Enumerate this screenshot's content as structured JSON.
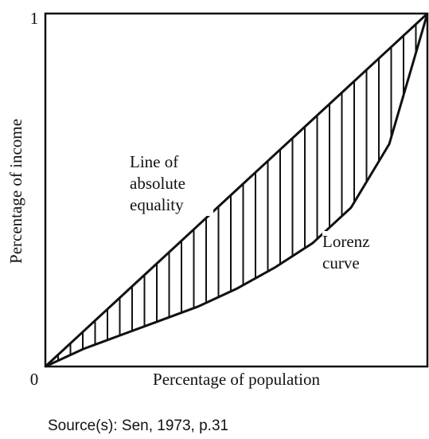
{
  "chart_data": {
    "type": "line",
    "x": [
      0,
      0.1,
      0.2,
      0.3,
      0.4,
      0.5,
      0.6,
      0.7,
      0.8,
      0.9,
      1
    ],
    "series": [
      {
        "name": "Line of absolute equality",
        "color": "#111111",
        "values": [
          0,
          0.1,
          0.2,
          0.3,
          0.4,
          0.5,
          0.6,
          0.7,
          0.8,
          0.9,
          1
        ]
      },
      {
        "name": "Lorenz curve",
        "color": "#111111",
        "values": [
          0,
          0.05,
          0.09,
          0.13,
          0.17,
          0.22,
          0.28,
          0.35,
          0.45,
          0.63,
          1
        ]
      }
    ],
    "x_label": "Percentage of population",
    "y_label": "Percentage of income",
    "xlim": [
      0,
      1
    ],
    "ylim": [
      0,
      1
    ],
    "yticks": [
      0,
      1
    ],
    "hatch": true,
    "source": "Source(s): Sen, 1973, p.31"
  }
}
